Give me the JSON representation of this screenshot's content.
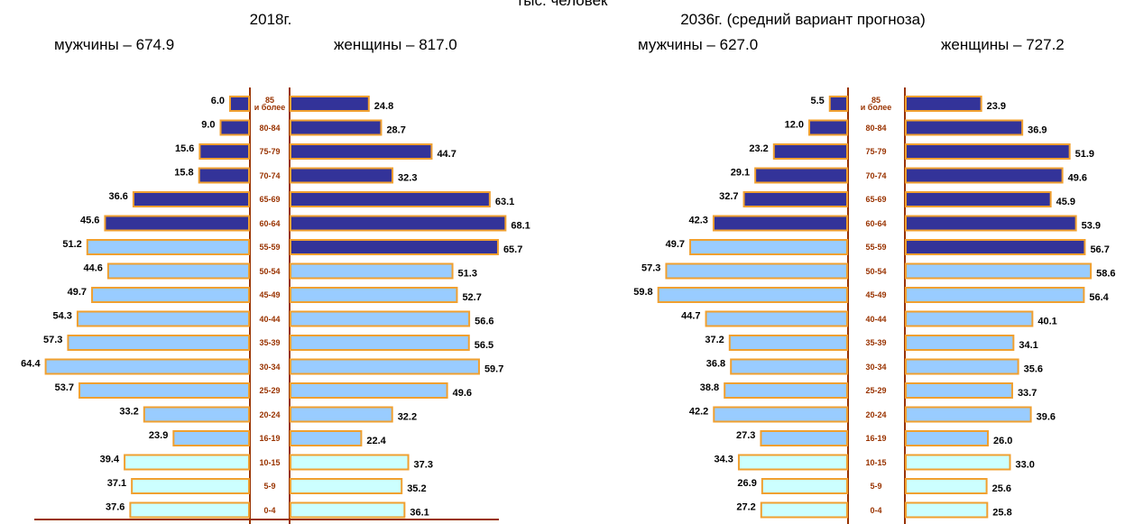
{
  "unit": "тыс. человек",
  "chart_data": [
    {
      "type": "pyramid",
      "title": "2018г.",
      "categories": [
        "85 и более",
        "80-84",
        "75-79",
        "70-74",
        "65-69",
        "60-64",
        "55-59",
        "50-54",
        "45-49",
        "40-44",
        "35-39",
        "30-34",
        "25-29",
        "20-24",
        "16-19",
        "10-15",
        "5-9",
        "0-4"
      ],
      "series": [
        {
          "name": "мужчины – 674.9",
          "colors": [
            "#333399",
            "#333399",
            "#333399",
            "#333399",
            "#333399",
            "#333399",
            "#99ccff",
            "#99ccff",
            "#99ccff",
            "#99ccff",
            "#99ccff",
            "#99ccff",
            "#99ccff",
            "#99ccff",
            "#99ccff",
            "#ccffff",
            "#ccffff",
            "#ccffff"
          ],
          "values": [
            6.0,
            9.0,
            15.6,
            15.8,
            36.6,
            45.6,
            51.2,
            44.6,
            49.7,
            54.3,
            57.3,
            64.4,
            53.7,
            33.2,
            23.9,
            39.4,
            37.1,
            37.6
          ],
          "value_labels": [
            "6.0",
            "9.0",
            "15.6",
            "15.8",
            "36.6",
            "45.6",
            "51.2",
            "44.6",
            "49.7",
            "54.3",
            "57.3",
            "64.4",
            "53.7",
            "33.2",
            "23.9",
            "39.4",
            "37.1",
            "37.6"
          ]
        },
        {
          "name": "женщины – 817.0",
          "colors": [
            "#333399",
            "#333399",
            "#333399",
            "#333399",
            "#333399",
            "#333399",
            "#333399",
            "#99ccff",
            "#99ccff",
            "#99ccff",
            "#99ccff",
            "#99ccff",
            "#99ccff",
            "#99ccff",
            "#99ccff",
            "#ccffff",
            "#ccffff",
            "#ccffff"
          ],
          "values": [
            24.8,
            28.7,
            44.7,
            32.3,
            63.1,
            68.1,
            65.7,
            51.3,
            52.7,
            56.6,
            56.5,
            59.7,
            49.6,
            32.2,
            22.4,
            37.3,
            35.2,
            36.1
          ],
          "value_labels": [
            "24.8",
            "28.7",
            "44.7",
            "32.3",
            "63.1",
            "68.1",
            "65.7",
            "51.3",
            "52.7",
            "56.6",
            "56.5",
            "59.7",
            "49.6",
            "32.2",
            "22.4",
            "37.3",
            "35.2",
            "36.1"
          ]
        }
      ]
    },
    {
      "type": "pyramid",
      "title": "2036г. (средний вариант прогноза)",
      "categories": [
        "85 и более",
        "80-84",
        "75-79",
        "70-74",
        "65-69",
        "60-64",
        "55-59",
        "50-54",
        "45-49",
        "40-44",
        "35-39",
        "30-34",
        "25-29",
        "20-24",
        "16-19",
        "10-15",
        "5-9",
        "0-4"
      ],
      "series": [
        {
          "name": "мужчины – 627.0",
          "colors": [
            "#333399",
            "#333399",
            "#333399",
            "#333399",
            "#333399",
            "#333399",
            "#99ccff",
            "#99ccff",
            "#99ccff",
            "#99ccff",
            "#99ccff",
            "#99ccff",
            "#99ccff",
            "#99ccff",
            "#99ccff",
            "#ccffff",
            "#ccffff",
            "#ccffff"
          ],
          "values": [
            5.5,
            12.0,
            23.2,
            29.1,
            32.7,
            42.3,
            49.7,
            57.3,
            59.8,
            44.7,
            37.2,
            36.8,
            38.8,
            42.2,
            27.3,
            34.3,
            26.9,
            27.2
          ],
          "value_labels": [
            "5.5",
            "12.0",
            "23.2",
            "29.1",
            "32.7",
            "42.3",
            "49.7",
            "57.3",
            "59.8",
            "44.7",
            "37.2",
            "36.8",
            "38.8",
            "42.2",
            "27.3",
            "34.3",
            "26.9",
            "27.2"
          ]
        },
        {
          "name": "женщины – 727.2",
          "colors": [
            "#333399",
            "#333399",
            "#333399",
            "#333399",
            "#333399",
            "#333399",
            "#333399",
            "#99ccff",
            "#99ccff",
            "#99ccff",
            "#99ccff",
            "#99ccff",
            "#99ccff",
            "#99ccff",
            "#99ccff",
            "#ccffff",
            "#ccffff",
            "#ccffff"
          ],
          "values": [
            23.9,
            36.9,
            51.9,
            49.6,
            45.9,
            53.9,
            56.7,
            58.6,
            56.4,
            40.1,
            34.1,
            35.6,
            33.7,
            39.6,
            26.0,
            33.0,
            25.6,
            25.8
          ],
          "value_labels": [
            "23.9",
            "36.9",
            "51.9",
            "49.6",
            "45.9",
            "53.9",
            "56.7",
            "58.6",
            "56.4",
            "40.1",
            "34.1",
            "35.6",
            "33.7",
            "39.6",
            "26.0",
            "33.0",
            "25.6",
            "25.8"
          ]
        }
      ]
    }
  ]
}
